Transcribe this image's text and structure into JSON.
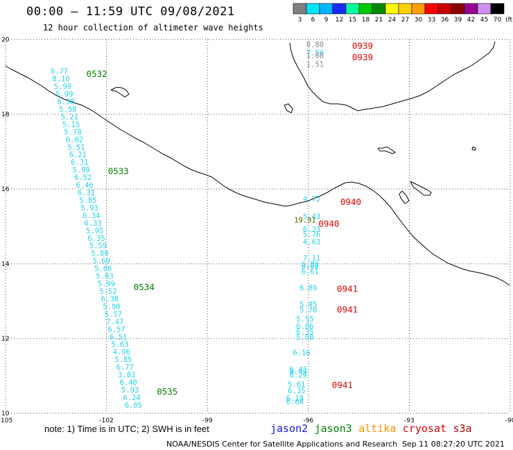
{
  "header": {
    "title": "00:00 — 11:59 UTC 09/08/2021",
    "subtitle": "12 hour collection of altimeter wave heights"
  },
  "legend": {
    "labels": [
      "3",
      "6",
      "9",
      "12",
      "15",
      "18",
      "21",
      "24",
      "27",
      "30",
      "33",
      "36",
      "39",
      "42",
      "45",
      "70"
    ],
    "unit": "(ft)",
    "colors": [
      "#808080",
      "#00e5ff",
      "#00b5ff",
      "#1a2bff",
      "#00ffa0",
      "#00c800",
      "#008a00",
      "#ffff00",
      "#ffd000",
      "#ffa000",
      "#ff0000",
      "#cc0000",
      "#8b0000",
      "#9a0090",
      "#d090f0",
      "#000000"
    ]
  },
  "map": {
    "lon_range": [
      -105,
      -90
    ],
    "lat_range": [
      10,
      20
    ],
    "x_ticks": [
      "-105",
      "-102",
      "-99",
      "-96",
      "-93",
      "-90"
    ],
    "y_ticks": [
      "20",
      "18",
      "16",
      "14",
      "12",
      "10"
    ],
    "track_color": "#22d3ee",
    "gray_color": "#8a8a8a",
    "jason3_color": "#008000",
    "cryosat_color": "#e00000",
    "track1_values": [
      "6.77",
      "8.10",
      "5.99",
      "5.99",
      "6.38",
      "5.58",
      "5.21",
      "5.15",
      "5.78",
      "6.02",
      "5.51",
      "6.21",
      "6.31",
      "5.99",
      "6.52",
      "6.46",
      "6.31",
      "5.85",
      "5.93",
      "6.34",
      "6.33",
      "5.95",
      "6.35",
      "5.59",
      "5.89",
      "5.69",
      "5.66",
      "5.93",
      "5.99",
      "5.52",
      "6.38",
      "5.90",
      "5.57",
      "7.47",
      "6.57",
      "6.51",
      "5.63",
      "4.96",
      "5.85",
      "6.77",
      "3.83",
      "6.40",
      "5.93",
      "6.24",
      "6.05"
    ],
    "track1_times": [
      {
        "text": "0532",
        "lat": 19.0
      },
      {
        "text": "0533",
        "lat": 16.4
      },
      {
        "text": "0534",
        "lat": 13.3
      },
      {
        "text": "0535",
        "lat": 10.5
      }
    ],
    "track2_values": [
      {
        "text": "0.80",
        "lon": -95.8,
        "lat": 19.8,
        "kind": "gray"
      },
      {
        "text": "7.56",
        "lon": -95.8,
        "lat": 19.57,
        "kind": "cyan"
      },
      {
        "text": "1.60",
        "lon": -95.8,
        "lat": 19.5,
        "kind": "gray"
      },
      {
        "text": "1.51",
        "lon": -95.8,
        "lat": 19.27,
        "kind": "gray"
      },
      {
        "text": "4.72",
        "lon": -95.9,
        "lat": 15.67,
        "kind": "cyan"
      },
      {
        "text": "5.43",
        "lon": -95.9,
        "lat": 15.19,
        "kind": "cyan"
      },
      {
        "text": "19.91",
        "lon": -96.1,
        "lat": 15.1,
        "kind": "dark"
      },
      {
        "text": "6.23",
        "lon": -95.9,
        "lat": 14.85,
        "kind": "cyan"
      },
      {
        "text": "5.76",
        "lon": -95.9,
        "lat": 14.72,
        "kind": "cyan"
      },
      {
        "text": "4.63",
        "lon": -95.9,
        "lat": 14.52,
        "kind": "cyan"
      },
      {
        "text": "7.11",
        "lon": -95.9,
        "lat": 14.08,
        "kind": "cyan"
      },
      {
        "text": "6.03",
        "lon": -95.95,
        "lat": 13.92,
        "kind": "cyan"
      },
      {
        "text": "6.08",
        "lon": -95.95,
        "lat": 13.87,
        "kind": "cyan"
      },
      {
        "text": "6.61",
        "lon": -95.95,
        "lat": 13.72,
        "kind": "cyan"
      },
      {
        "text": "6.89",
        "lon": -96.0,
        "lat": 13.29,
        "kind": "cyan"
      },
      {
        "text": "5.45",
        "lon": -96.0,
        "lat": 12.85,
        "kind": "cyan"
      },
      {
        "text": "5.70",
        "lon": -96.0,
        "lat": 12.69,
        "kind": "cyan"
      },
      {
        "text": "5.55",
        "lon": -96.1,
        "lat": 12.45,
        "kind": "cyan"
      },
      {
        "text": "6.06",
        "lon": -96.1,
        "lat": 12.26,
        "kind": "cyan"
      },
      {
        "text": "6.35",
        "lon": -96.1,
        "lat": 12.11,
        "kind": "cyan"
      },
      {
        "text": "5.80",
        "lon": -96.1,
        "lat": 11.96,
        "kind": "cyan"
      },
      {
        "text": "6.16",
        "lon": -96.2,
        "lat": 11.56,
        "kind": "cyan"
      },
      {
        "text": "6.43",
        "lon": -96.3,
        "lat": 11.1,
        "kind": "cyan"
      },
      {
        "text": "6.49",
        "lon": -96.3,
        "lat": 11.05,
        "kind": "cyan"
      },
      {
        "text": "6.29",
        "lon": -96.3,
        "lat": 10.95,
        "kind": "cyan"
      },
      {
        "text": "5.61",
        "lon": -96.35,
        "lat": 10.7,
        "kind": "cyan"
      },
      {
        "text": "6.35",
        "lon": -96.35,
        "lat": 10.54,
        "kind": "cyan"
      },
      {
        "text": "6.18",
        "lon": -96.4,
        "lat": 10.33,
        "kind": "cyan"
      },
      {
        "text": "6.64",
        "lon": -96.4,
        "lat": 10.24,
        "kind": "cyan"
      }
    ],
    "track2_times": [
      {
        "text": "0939",
        "lon": -94.7,
        "lat": 19.75
      },
      {
        "text": "0939",
        "lon": -94.7,
        "lat": 19.44
      },
      {
        "text": "0940",
        "lon": -95.05,
        "lat": 15.57
      },
      {
        "text": "0940",
        "lon": -95.7,
        "lat": 14.99
      },
      {
        "text": "0941",
        "lon": -95.15,
        "lat": 13.25
      },
      {
        "text": "0941",
        "lon": -95.15,
        "lat": 12.69
      },
      {
        "text": "0941",
        "lon": -95.3,
        "lat": 10.68
      }
    ]
  },
  "footer": {
    "note": "note: 1) Time is in UTC; 2) SWH is in feet",
    "satellites": [
      {
        "text": "jason2",
        "color": "#1414e0"
      },
      {
        "text": "jason3",
        "color": "#008000"
      },
      {
        "text": "altika",
        "color": "#ff9000"
      },
      {
        "text": "cryosat",
        "color": "#e00000"
      },
      {
        "text": "s3a",
        "color": "#b00000"
      }
    ],
    "credit": "NOAA/NESDIS Center for Satellite Applications and Research",
    "timestamp": "Sep 11 08:27:20 UTC 2021"
  }
}
